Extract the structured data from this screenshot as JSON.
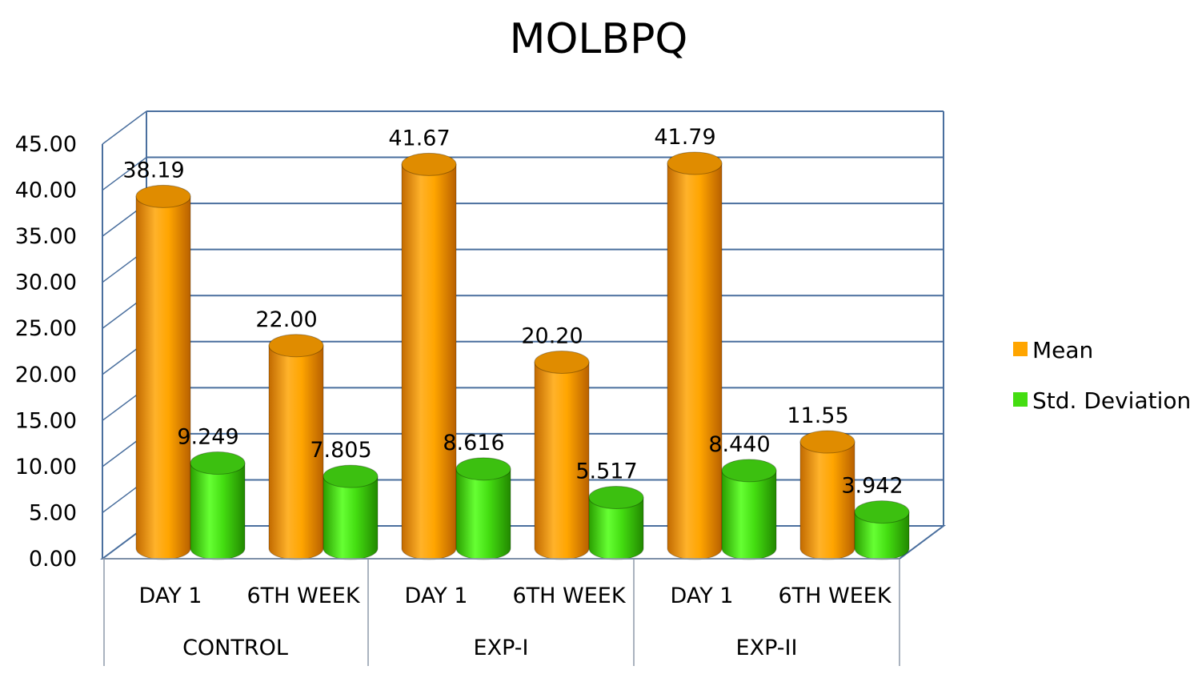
{
  "chart_data": {
    "type": "bar",
    "title": "MOLBPQ",
    "xlabel": "",
    "ylabel": "",
    "ylim": [
      0,
      45
    ],
    "yticks": [
      "0.00",
      "5.00",
      "10.00",
      "15.00",
      "20.00",
      "25.00",
      "30.00",
      "35.00",
      "40.00",
      "45.00"
    ],
    "groups": [
      {
        "label": "CONTROL",
        "categories": [
          "DAY 1",
          "6TH WEEK"
        ]
      },
      {
        "label": "EXP-I",
        "categories": [
          "DAY 1",
          "6TH WEEK"
        ]
      },
      {
        "label": "EXP-II",
        "categories": [
          "DAY 1",
          "6TH WEEK"
        ]
      }
    ],
    "categories": [
      "DAY 1",
      "6TH WEEK",
      "DAY 1",
      "6TH WEEK",
      "DAY 1",
      "6TH WEEK"
    ],
    "series": [
      {
        "name": "Mean",
        "color": "#FFA500",
        "values": [
          38.19,
          22.0,
          41.67,
          20.2,
          41.79,
          11.55
        ],
        "labels": [
          "38.19",
          "22.00",
          "41.67",
          "20.20",
          "41.79",
          "11.55"
        ]
      },
      {
        "name": "Std. Deviation",
        "color": "#44DD11",
        "values": [
          9.249,
          7.805,
          8.616,
          5.517,
          8.44,
          3.942
        ],
        "labels": [
          "9.249",
          "7.805",
          "8.616",
          "5.517",
          "8.440",
          "3.942"
        ]
      }
    ],
    "legend": "right",
    "grid": true
  }
}
